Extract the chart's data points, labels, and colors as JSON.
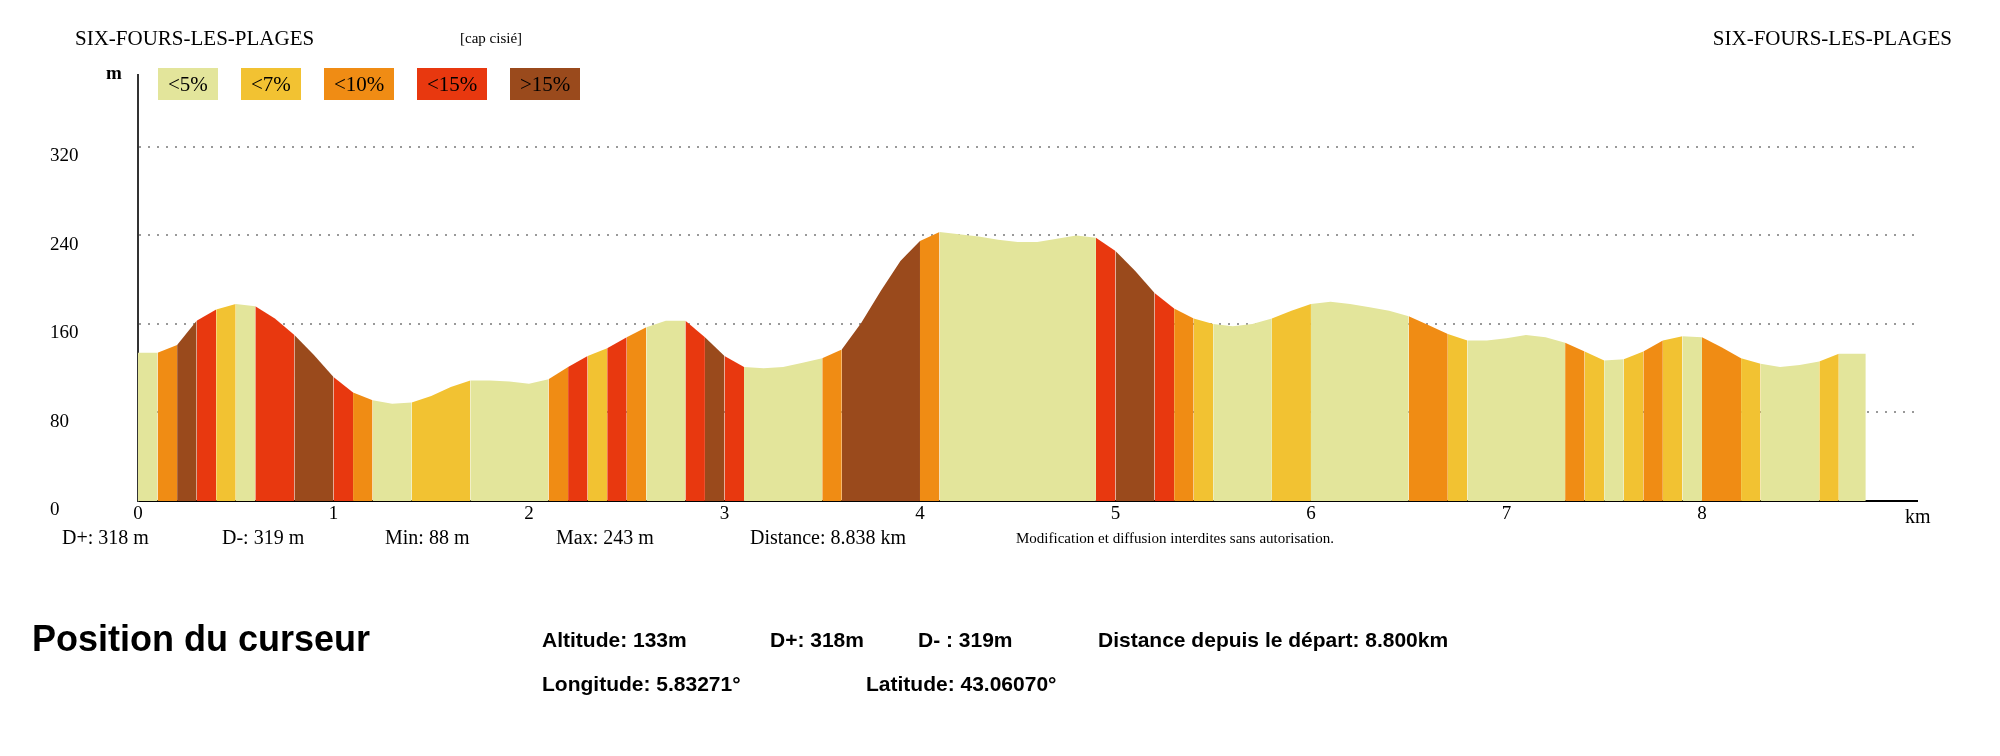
{
  "chart_data": {
    "type": "area",
    "title": "SIX-FOURS-LES-PLAGES",
    "xlabel": "km",
    "ylabel": "m",
    "annotations": [
      "[cap cisié]",
      "SIX-FOURS-LES-PLAGES",
      "D+: 318 m",
      "D-: 319 m",
      "Min: 88 m",
      "Max: 243 m",
      "Distance: 8.838 km",
      "Modification et diffusion interdites sans autorisation.",
      "Position du curseur",
      "Altitude: 133m",
      "D+: 318m",
      "D- : 319m",
      "Distance depuis le départ: 8.800km",
      "Longitude: 5.83271°",
      "Latitude: 43.06070°"
    ],
    "series": [
      {
        "name": "<5%",
        "color": "#e3e59b",
        "x": [
          0,
          0.1,
          null,
          0.5,
          0.6,
          null,
          1.2,
          1.3,
          1.4,
          null,
          1.7,
          1.8,
          1.9,
          2,
          2.1,
          null,
          2.6,
          2.7,
          2.8,
          null,
          3.1,
          3.2,
          3.3,
          3.4,
          3.5,
          null,
          4.1,
          4.2,
          4.3,
          4.4,
          4.5,
          4.6,
          4.7,
          4.8,
          4.9,
          null,
          5.5,
          5.6,
          5.7,
          5.8,
          null,
          6,
          6.1,
          6.2,
          6.3,
          6.4,
          6.5,
          null,
          6.8,
          6.9,
          7,
          7.1,
          7.2,
          7.3,
          null,
          7.5,
          7.6,
          null,
          7.9,
          8,
          null,
          8.3,
          8.4,
          8.5,
          8.6,
          null,
          8.7,
          8.838
        ],
        "values": [
          134,
          134,
          null,
          178,
          176,
          null,
          91,
          88,
          89,
          null,
          109,
          109,
          108,
          106,
          110,
          null,
          157,
          163,
          163,
          null,
          121,
          120,
          121,
          125,
          129,
          null,
          243,
          241,
          239,
          236,
          234,
          234,
          237,
          240,
          238,
          null,
          160,
          158,
          160,
          165,
          null,
          178,
          180,
          178,
          175,
          172,
          167,
          null,
          145,
          145,
          147,
          150,
          148,
          143,
          null,
          127,
          128,
          null,
          149,
          148,
          null,
          124,
          121,
          123,
          126,
          null,
          133,
          133
        ]
      },
      {
        "name": "<7%",
        "color": "#f2c232",
        "x": [
          0.4,
          0.5,
          null,
          1.4,
          1.5,
          1.6,
          1.7,
          null,
          2.3,
          2.4,
          null,
          5.4,
          5.5,
          null,
          5.8,
          5.9,
          6,
          null,
          6.7,
          6.8,
          null,
          7.4,
          7.5,
          null,
          7.6,
          7.7,
          null,
          7.8,
          7.9,
          null,
          8.2,
          8.3,
          null,
          8.6,
          8.7
        ],
        "values": [
          173,
          178,
          null,
          89,
          95,
          103,
          109,
          null,
          131,
          138,
          null,
          165,
          160,
          null,
          165,
          172,
          178,
          null,
          151,
          145,
          null,
          135,
          127,
          null,
          128,
          135,
          null,
          145,
          149,
          null,
          129,
          124,
          null,
          126,
          133
        ]
      },
      {
        "name": "<10%",
        "color": "#f08c14",
        "x": [
          0.1,
          0.2,
          null,
          1.1,
          1.2,
          null,
          2.1,
          2.2,
          null,
          2.5,
          2.6,
          null,
          3.5,
          3.6,
          null,
          4,
          4.1,
          null,
          5.3,
          5.4,
          null,
          6.5,
          6.6,
          6.7,
          null,
          7.3,
          7.4,
          null,
          7.7,
          7.8,
          null,
          8,
          8.1,
          8.2
        ],
        "values": [
          134,
          141,
          null,
          98,
          91,
          null,
          110,
          121,
          null,
          148,
          157,
          null,
          129,
          137,
          null,
          235,
          243,
          null,
          174,
          165,
          null,
          167,
          159,
          151,
          null,
          143,
          135,
          null,
          135,
          145,
          null,
          148,
          139,
          129
        ]
      },
      {
        "name": "<15%",
        "color": "#e8380f",
        "x": [
          0.3,
          0.4,
          null,
          0.6,
          0.7,
          0.8,
          null,
          1,
          1.1,
          null,
          2.2,
          2.3,
          null,
          2.4,
          2.5,
          null,
          2.8,
          2.9,
          null,
          3,
          3.1,
          null,
          4.9,
          5,
          null,
          5.2,
          5.3
        ],
        "values": [
          163,
          173,
          null,
          176,
          165,
          150,
          null,
          112,
          98,
          null,
          121,
          131,
          null,
          138,
          148,
          null,
          163,
          148,
          null,
          131,
          121,
          null,
          238,
          226,
          null,
          188,
          174
        ]
      },
      {
        "name": ">15%",
        "color": "#9a4a1c",
        "x": [
          0.2,
          0.3,
          null,
          0.8,
          0.9,
          1,
          null,
          2.9,
          3,
          null,
          3.6,
          3.7,
          3.8,
          3.9,
          4,
          null,
          5,
          5.1,
          5.2
        ],
        "values": [
          141,
          163,
          null,
          150,
          132,
          112,
          null,
          148,
          131,
          null,
          137,
          161,
          190,
          217,
          235,
          null,
          226,
          208,
          188
        ]
      }
    ],
    "xlim": [
      0,
      9.1
    ],
    "xticks": [
      0,
      1,
      2,
      3,
      4,
      5,
      6,
      7,
      8
    ],
    "ylim": [
      0,
      385
    ],
    "yticks": [
      0,
      80,
      160,
      240,
      320
    ],
    "grid": "y",
    "legend": "top left"
  }
}
